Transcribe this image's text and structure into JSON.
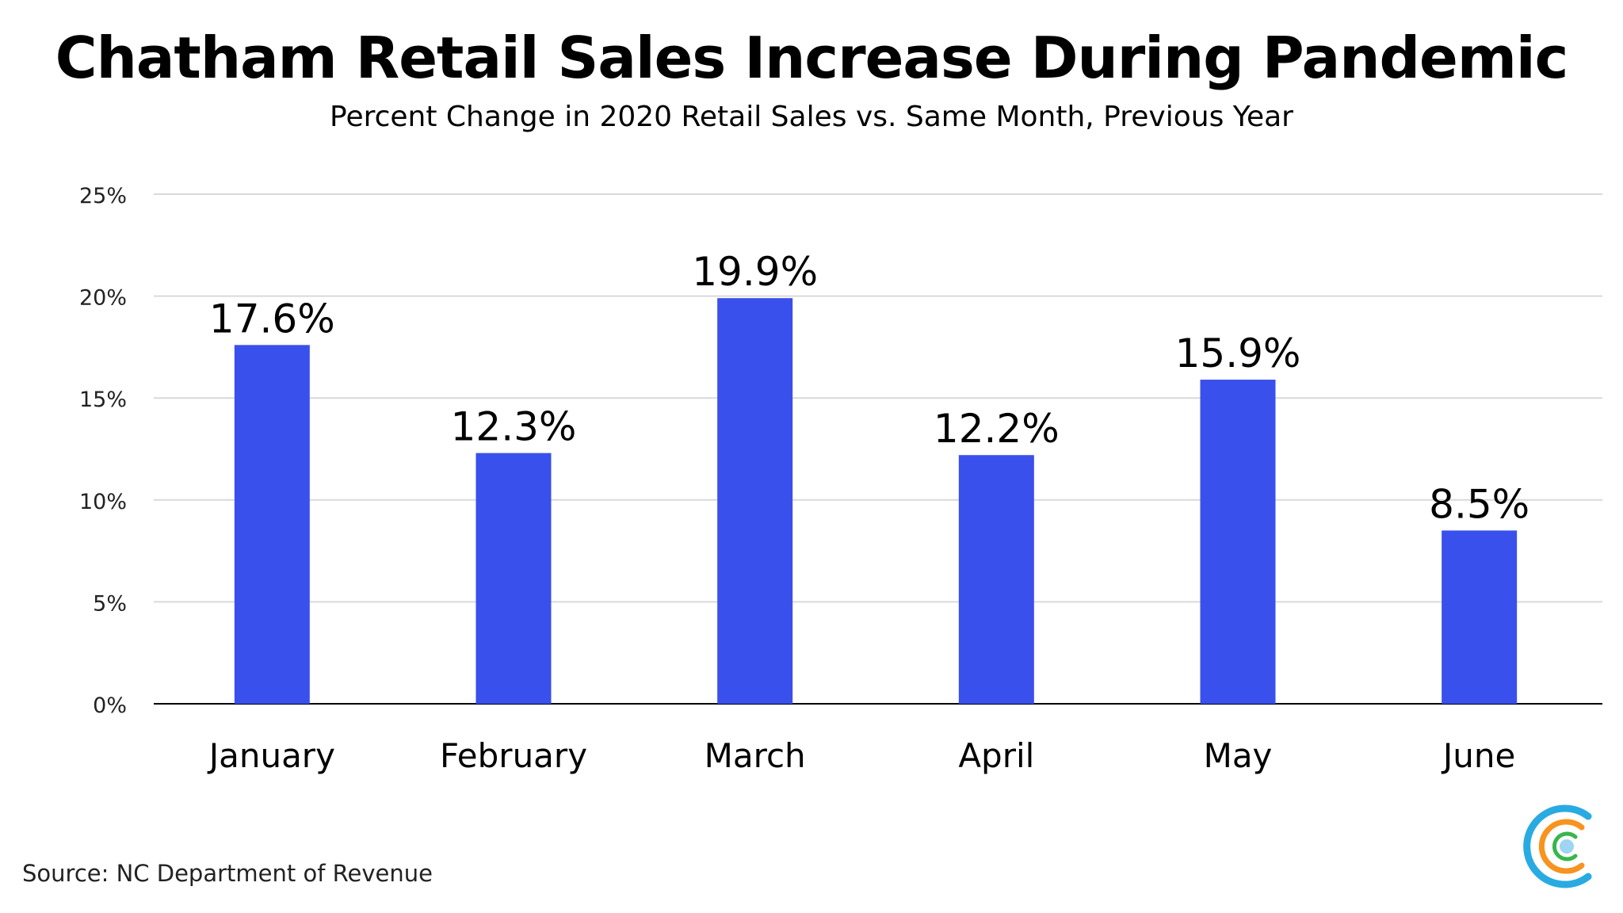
{
  "title": "Chatham Retail Sales Increase During Pandemic",
  "subtitle": "Percent Change in 2020 Retail Sales vs. Same Month, Previous Year",
  "source": "Source: NC Department of Revenue",
  "colors": {
    "bar": "#3a50ec",
    "grid": "#d9d9d9",
    "axis": "#000000",
    "logo_blue": "#29abe2",
    "logo_orange": "#f7931e",
    "logo_green": "#39b54a",
    "logo_dot": "#9fd4f2"
  },
  "logo_icon": "chatham-logo-icon",
  "chart_data": {
    "type": "bar",
    "title": "Chatham Retail Sales Increase During Pandemic",
    "subtitle": "Percent Change in 2020 Retail Sales vs. Same Month, Previous Year",
    "categories": [
      "January",
      "February",
      "March",
      "April",
      "May",
      "June"
    ],
    "values": [
      17.6,
      12.3,
      19.9,
      12.2,
      15.9,
      8.5
    ],
    "data_labels": [
      "17.6%",
      "12.3%",
      "19.9%",
      "12.2%",
      "15.9%",
      "8.5%"
    ],
    "xlabel": "",
    "ylabel": "",
    "ylim": [
      0,
      25
    ],
    "yticks": [
      0,
      5,
      10,
      15,
      20,
      25
    ],
    "ytick_labels": [
      "0%",
      "5%",
      "10%",
      "15%",
      "20%",
      "25%"
    ],
    "grid": true,
    "legend": false
  }
}
